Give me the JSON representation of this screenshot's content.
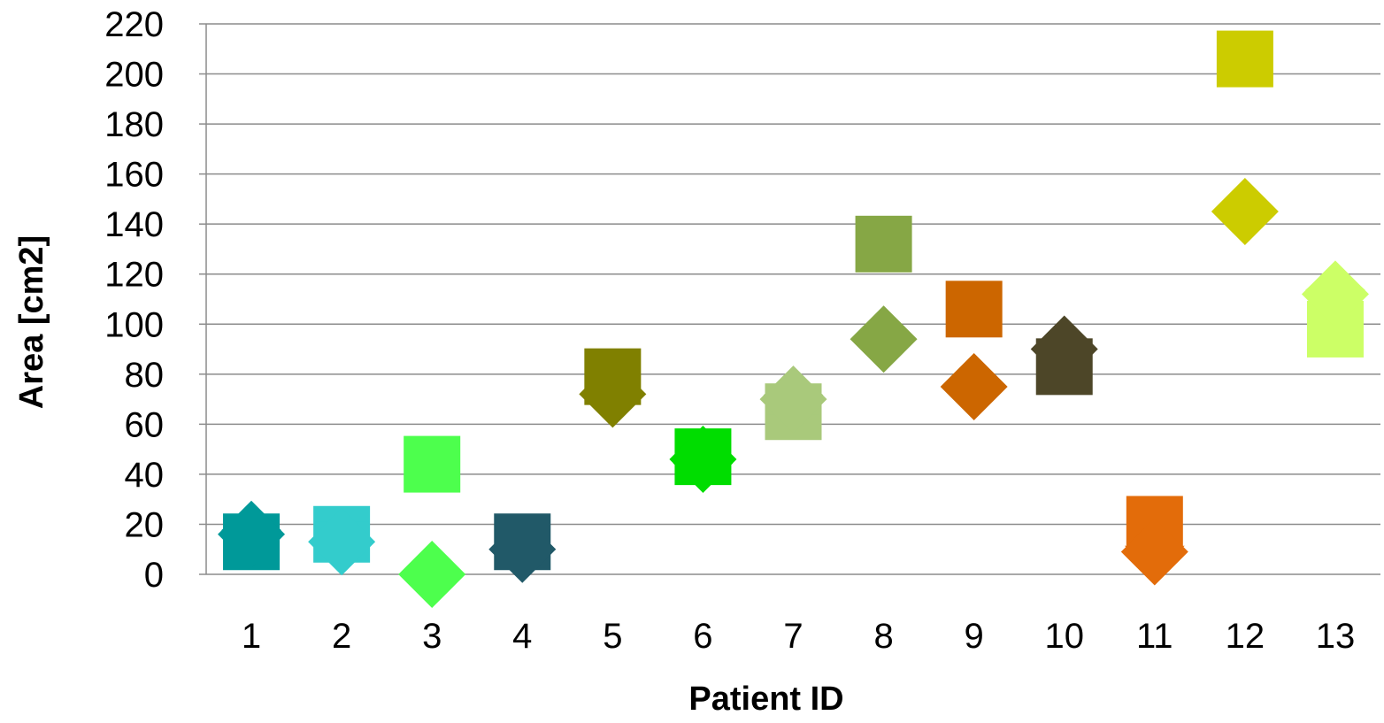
{
  "chart_data": {
    "type": "scatter",
    "xlabel": "Patient ID",
    "ylabel": "Area [cm2]",
    "ylim": [
      0,
      220
    ],
    "ytick_step": 20,
    "grid": true,
    "categories": [
      "1",
      "2",
      "3",
      "4",
      "5",
      "6",
      "7",
      "8",
      "9",
      "10",
      "11",
      "12",
      "13"
    ],
    "series": [
      {
        "marker": "square",
        "values": [
          13,
          16,
          44,
          13,
          79,
          47,
          65,
          132,
          106,
          83,
          20,
          206,
          98
        ]
      },
      {
        "marker": "diamond",
        "values": [
          16,
          13,
          0,
          10,
          72,
          46,
          70,
          94,
          75,
          90,
          9,
          145,
          112
        ]
      },
      {
        "marker": "arrow-up",
        "values": [
          19,
          null,
          null,
          null,
          null,
          null,
          73,
          null,
          null,
          92,
          null,
          null,
          115
        ]
      },
      {
        "marker": "arrow-down",
        "values": [
          null,
          12,
          null,
          9,
          70,
          43,
          null,
          null,
          null,
          null,
          10,
          null,
          null
        ]
      }
    ],
    "colors": [
      "#009999",
      "#33cccc",
      "#4dff4d",
      "#215968",
      "#808000",
      "#00dd00",
      "#a9c97b",
      "#86a745",
      "#cc6600",
      "#4d4628",
      "#e36c0a",
      "#cccc00",
      "#ccff66"
    ]
  }
}
